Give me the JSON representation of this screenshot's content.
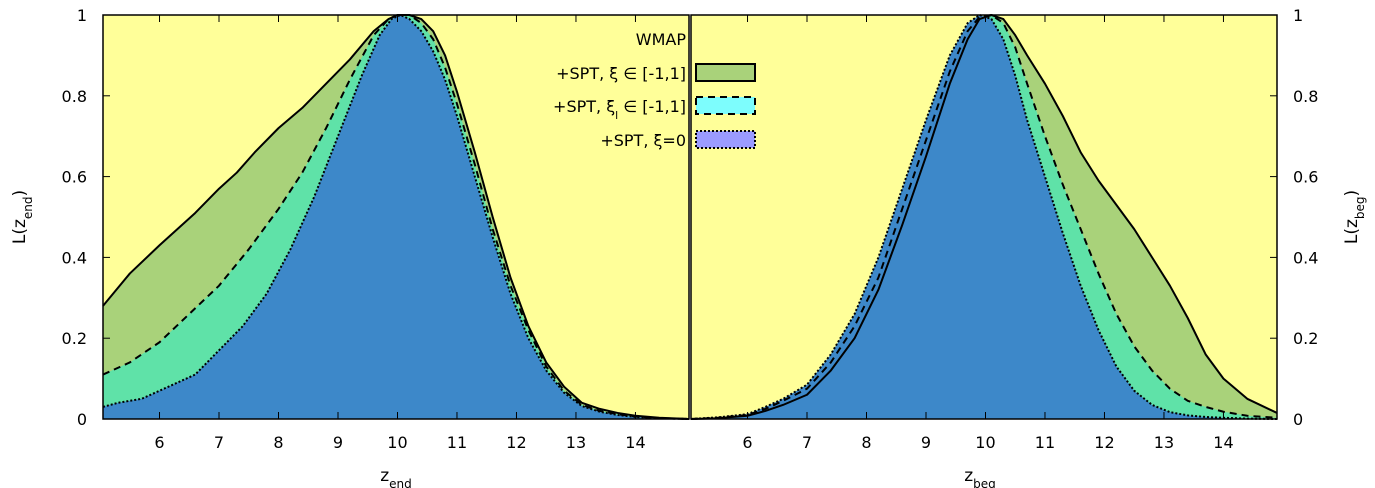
{
  "colors": {
    "wmap": "#ffff99",
    "spt_xi": "#a9d27a",
    "spt_xil": "#5fe2a8",
    "spt_xi0": "#3d88c9",
    "spt_xi0_legend": "#9b9bff",
    "spt_xil_legend": "#7dfdfd",
    "line": "#000000"
  },
  "legend": {
    "wmap": "WMAP",
    "spt_xi": "+SPT, ξ ∈ [-1,1]",
    "spt_xil_pre": "+SPT, ξ",
    "spt_xil_sub": "l",
    "spt_xil_post": " ∈ [-1,1]",
    "spt_xi0": "+SPT, ξ=0"
  },
  "chart_data": [
    {
      "type": "area",
      "panel": "left",
      "xlabel_main": "z",
      "xlabel_sub": "end",
      "ylabel_main": "L(z",
      "ylabel_sub": "end",
      "ylabel_close": ")",
      "xlim": [
        5.05,
        14.9
      ],
      "ylim": [
        0,
        1
      ],
      "xticks": [
        6,
        7,
        8,
        9,
        10,
        11,
        12,
        13,
        14
      ],
      "yticks": [
        0,
        0.2,
        0.4,
        0.6,
        0.8,
        1
      ],
      "ytick_labels": [
        "0",
        "0.2",
        "0.4",
        "0.6",
        "0.8",
        "1"
      ],
      "wmap": {
        "x": [
          5.05,
          14.9
        ],
        "y": [
          1,
          1
        ]
      },
      "series": [
        {
          "key": "spt_xi",
          "x": [
            5.05,
            5.5,
            6.0,
            6.3,
            6.6,
            7.0,
            7.3,
            7.6,
            8.0,
            8.4,
            8.8,
            9.2,
            9.6,
            9.85,
            10.0,
            10.2,
            10.4,
            10.6,
            10.8,
            11.0,
            11.3,
            11.6,
            11.9,
            12.2,
            12.5,
            12.8,
            13.1,
            13.4,
            13.7,
            14.0,
            14.4,
            14.9
          ],
          "y": [
            0.28,
            0.36,
            0.43,
            0.47,
            0.51,
            0.57,
            0.61,
            0.66,
            0.72,
            0.77,
            0.83,
            0.89,
            0.96,
            0.99,
            1.0,
            1.0,
            0.99,
            0.96,
            0.9,
            0.81,
            0.66,
            0.5,
            0.35,
            0.23,
            0.14,
            0.08,
            0.04,
            0.025,
            0.015,
            0.008,
            0.003,
            0.0
          ]
        },
        {
          "key": "spt_xil",
          "x": [
            5.05,
            5.5,
            6.0,
            6.5,
            7.0,
            7.5,
            8.0,
            8.4,
            8.8,
            9.2,
            9.6,
            9.85,
            10.0,
            10.2,
            10.4,
            10.6,
            10.8,
            11.0,
            11.3,
            11.6,
            11.9,
            12.2,
            12.5,
            12.8,
            13.1,
            13.4,
            13.7,
            14.0,
            14.4,
            14.9
          ],
          "y": [
            0.11,
            0.14,
            0.19,
            0.26,
            0.33,
            0.42,
            0.52,
            0.61,
            0.72,
            0.84,
            0.95,
            0.99,
            1.0,
            1.0,
            0.98,
            0.94,
            0.87,
            0.78,
            0.63,
            0.47,
            0.33,
            0.22,
            0.13,
            0.07,
            0.035,
            0.02,
            0.012,
            0.006,
            0.002,
            0.0
          ]
        },
        {
          "key": "spt_xi0",
          "x": [
            5.05,
            5.3,
            5.7,
            6.0,
            6.3,
            6.6,
            7.0,
            7.4,
            7.8,
            8.2,
            8.6,
            9.0,
            9.4,
            9.7,
            9.9,
            10.05,
            10.2,
            10.4,
            10.6,
            10.8,
            11.0,
            11.3,
            11.6,
            11.9,
            12.2,
            12.5,
            12.8,
            13.1,
            13.4,
            13.7,
            14.0,
            14.4,
            14.9
          ],
          "y": [
            0.03,
            0.04,
            0.05,
            0.07,
            0.09,
            0.11,
            0.17,
            0.23,
            0.31,
            0.42,
            0.55,
            0.7,
            0.85,
            0.95,
            0.99,
            1.0,
            0.99,
            0.96,
            0.91,
            0.84,
            0.75,
            0.6,
            0.45,
            0.31,
            0.2,
            0.12,
            0.065,
            0.032,
            0.018,
            0.01,
            0.005,
            0.002,
            0.0
          ]
        }
      ]
    },
    {
      "type": "area",
      "panel": "right",
      "xlabel_main": "z",
      "xlabel_sub": "beg",
      "ylabel_main": "L(z",
      "ylabel_sub": "beg",
      "ylabel_close": ")",
      "xlim": [
        5.05,
        14.9
      ],
      "ylim": [
        0,
        1
      ],
      "xticks": [
        6,
        7,
        8,
        9,
        10,
        11,
        12,
        13,
        14
      ],
      "yticks": [
        0,
        0.2,
        0.4,
        0.6,
        0.8,
        1
      ],
      "ytick_labels": [
        "0",
        "0.2",
        "0.4",
        "0.6",
        "0.8",
        "1"
      ],
      "wmap": {
        "x": [
          5.05,
          14.9
        ],
        "y": [
          1,
          1
        ]
      },
      "series": [
        {
          "key": "spt_xi",
          "x": [
            5.05,
            5.5,
            6.0,
            6.3,
            6.6,
            7.0,
            7.4,
            7.8,
            8.2,
            8.6,
            9.0,
            9.4,
            9.7,
            9.9,
            10.1,
            10.3,
            10.5,
            10.7,
            11.0,
            11.3,
            11.6,
            11.9,
            12.2,
            12.5,
            12.8,
            13.1,
            13.4,
            13.7,
            14.0,
            14.4,
            14.9
          ],
          "y": [
            0.0,
            0.002,
            0.008,
            0.02,
            0.035,
            0.06,
            0.12,
            0.2,
            0.32,
            0.48,
            0.65,
            0.83,
            0.94,
            0.99,
            1.0,
            0.99,
            0.95,
            0.9,
            0.83,
            0.75,
            0.66,
            0.59,
            0.53,
            0.47,
            0.4,
            0.33,
            0.25,
            0.16,
            0.1,
            0.05,
            0.015
          ]
        },
        {
          "key": "spt_xil",
          "x": [
            5.05,
            5.5,
            6.0,
            6.3,
            6.6,
            7.0,
            7.4,
            7.8,
            8.2,
            8.6,
            9.0,
            9.4,
            9.7,
            9.9,
            10.1,
            10.3,
            10.5,
            10.7,
            11.0,
            11.3,
            11.6,
            11.9,
            12.2,
            12.5,
            12.8,
            13.1,
            13.4,
            13.7,
            14.0,
            14.4,
            14.9
          ],
          "y": [
            0.0,
            0.003,
            0.01,
            0.025,
            0.045,
            0.075,
            0.14,
            0.23,
            0.35,
            0.52,
            0.69,
            0.86,
            0.96,
            0.995,
            1.0,
            0.98,
            0.92,
            0.83,
            0.7,
            0.58,
            0.47,
            0.36,
            0.26,
            0.18,
            0.12,
            0.075,
            0.045,
            0.03,
            0.018,
            0.008,
            0.003
          ]
        },
        {
          "key": "spt_xi0",
          "x": [
            5.05,
            5.5,
            6.0,
            6.3,
            6.6,
            7.0,
            7.4,
            7.8,
            8.2,
            8.6,
            9.0,
            9.4,
            9.7,
            9.9,
            10.1,
            10.3,
            10.5,
            10.7,
            11.0,
            11.3,
            11.6,
            11.9,
            12.2,
            12.5,
            12.8,
            13.1,
            13.4,
            13.7,
            14.0,
            14.4,
            14.9
          ],
          "y": [
            0.0,
            0.004,
            0.012,
            0.03,
            0.05,
            0.085,
            0.16,
            0.26,
            0.4,
            0.57,
            0.74,
            0.9,
            0.98,
            1.0,
            0.99,
            0.94,
            0.85,
            0.74,
            0.6,
            0.46,
            0.33,
            0.22,
            0.13,
            0.07,
            0.035,
            0.017,
            0.009,
            0.005,
            0.003,
            0.001,
            0.0
          ]
        }
      ]
    }
  ]
}
